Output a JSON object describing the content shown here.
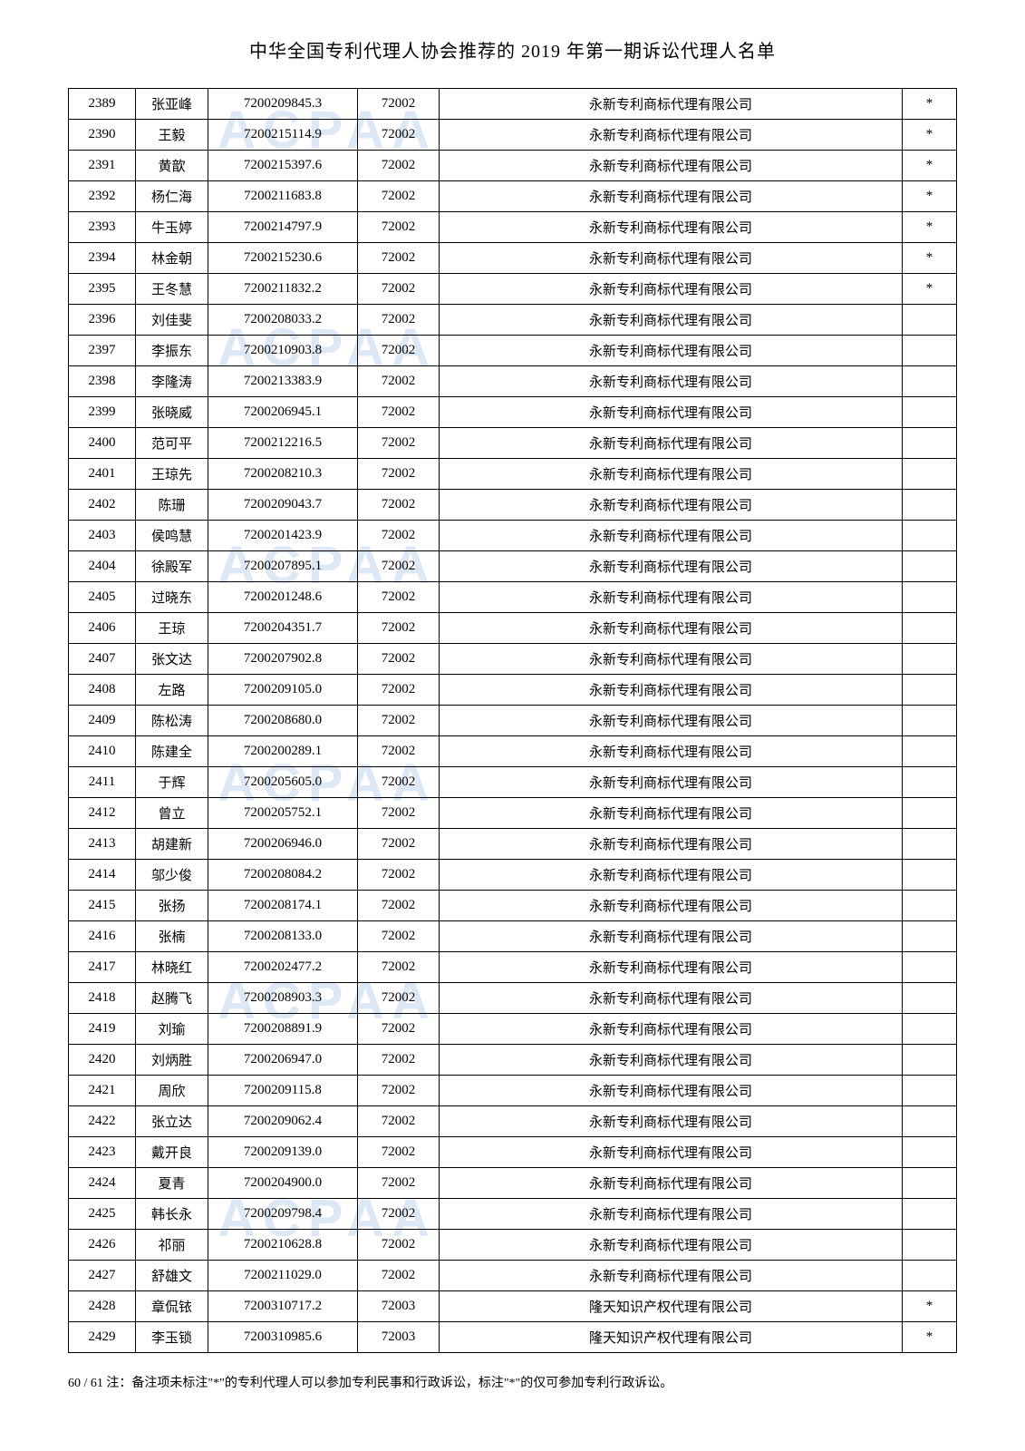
{
  "title": "中华全国专利代理人协会推荐的 2019 年第一期诉讼代理人名单",
  "footer": "60 / 61 注：备注项未标注\"*\"的专利代理人可以参加专利民事和行政诉讼，标注\"*\"的仅可参加专利行政诉讼。",
  "watermark_text": "ACPAA",
  "watermark_color": "#dce8f5",
  "colors": {
    "text": "#000000",
    "border": "#000000",
    "background": "#ffffff"
  },
  "columns": {
    "id_width": 74,
    "name_width": 80,
    "number_width": 165,
    "code_width": 90,
    "mark_width": 60
  },
  "rows": [
    {
      "id": "2389",
      "name": "张亚峰",
      "number": "7200209845.3",
      "code": "72002",
      "company": "永新专利商标代理有限公司",
      "mark": "*"
    },
    {
      "id": "2390",
      "name": "王毅",
      "number": "7200215114.9",
      "code": "72002",
      "company": "永新专利商标代理有限公司",
      "mark": "*"
    },
    {
      "id": "2391",
      "name": "黄歆",
      "number": "7200215397.6",
      "code": "72002",
      "company": "永新专利商标代理有限公司",
      "mark": "*"
    },
    {
      "id": "2392",
      "name": "杨仁海",
      "number": "7200211683.8",
      "code": "72002",
      "company": "永新专利商标代理有限公司",
      "mark": "*"
    },
    {
      "id": "2393",
      "name": "牛玉婷",
      "number": "7200214797.9",
      "code": "72002",
      "company": "永新专利商标代理有限公司",
      "mark": "*"
    },
    {
      "id": "2394",
      "name": "林金朝",
      "number": "7200215230.6",
      "code": "72002",
      "company": "永新专利商标代理有限公司",
      "mark": "*"
    },
    {
      "id": "2395",
      "name": "王冬慧",
      "number": "7200211832.2",
      "code": "72002",
      "company": "永新专利商标代理有限公司",
      "mark": "*"
    },
    {
      "id": "2396",
      "name": "刘佳斐",
      "number": "7200208033.2",
      "code": "72002",
      "company": "永新专利商标代理有限公司",
      "mark": ""
    },
    {
      "id": "2397",
      "name": "李振东",
      "number": "7200210903.8",
      "code": "72002",
      "company": "永新专利商标代理有限公司",
      "mark": ""
    },
    {
      "id": "2398",
      "name": "李隆涛",
      "number": "7200213383.9",
      "code": "72002",
      "company": "永新专利商标代理有限公司",
      "mark": ""
    },
    {
      "id": "2399",
      "name": "张晓威",
      "number": "7200206945.1",
      "code": "72002",
      "company": "永新专利商标代理有限公司",
      "mark": ""
    },
    {
      "id": "2400",
      "name": "范可平",
      "number": "7200212216.5",
      "code": "72002",
      "company": "永新专利商标代理有限公司",
      "mark": ""
    },
    {
      "id": "2401",
      "name": "王琼先",
      "number": "7200208210.3",
      "code": "72002",
      "company": "永新专利商标代理有限公司",
      "mark": ""
    },
    {
      "id": "2402",
      "name": "陈珊",
      "number": "7200209043.7",
      "code": "72002",
      "company": "永新专利商标代理有限公司",
      "mark": ""
    },
    {
      "id": "2403",
      "name": "侯鸣慧",
      "number": "7200201423.9",
      "code": "72002",
      "company": "永新专利商标代理有限公司",
      "mark": ""
    },
    {
      "id": "2404",
      "name": "徐殿军",
      "number": "7200207895.1",
      "code": "72002",
      "company": "永新专利商标代理有限公司",
      "mark": ""
    },
    {
      "id": "2405",
      "name": "过晓东",
      "number": "7200201248.6",
      "code": "72002",
      "company": "永新专利商标代理有限公司",
      "mark": ""
    },
    {
      "id": "2406",
      "name": "王琼",
      "number": "7200204351.7",
      "code": "72002",
      "company": "永新专利商标代理有限公司",
      "mark": ""
    },
    {
      "id": "2407",
      "name": "张文达",
      "number": "7200207902.8",
      "code": "72002",
      "company": "永新专利商标代理有限公司",
      "mark": ""
    },
    {
      "id": "2408",
      "name": "左路",
      "number": "7200209105.0",
      "code": "72002",
      "company": "永新专利商标代理有限公司",
      "mark": ""
    },
    {
      "id": "2409",
      "name": "陈松涛",
      "number": "7200208680.0",
      "code": "72002",
      "company": "永新专利商标代理有限公司",
      "mark": ""
    },
    {
      "id": "2410",
      "name": "陈建全",
      "number": "7200200289.1",
      "code": "72002",
      "company": "永新专利商标代理有限公司",
      "mark": ""
    },
    {
      "id": "2411",
      "name": "于辉",
      "number": "7200205605.0",
      "code": "72002",
      "company": "永新专利商标代理有限公司",
      "mark": ""
    },
    {
      "id": "2412",
      "name": "曾立",
      "number": "7200205752.1",
      "code": "72002",
      "company": "永新专利商标代理有限公司",
      "mark": ""
    },
    {
      "id": "2413",
      "name": "胡建新",
      "number": "7200206946.0",
      "code": "72002",
      "company": "永新专利商标代理有限公司",
      "mark": ""
    },
    {
      "id": "2414",
      "name": "邬少俊",
      "number": "7200208084.2",
      "code": "72002",
      "company": "永新专利商标代理有限公司",
      "mark": ""
    },
    {
      "id": "2415",
      "name": "张扬",
      "number": "7200208174.1",
      "code": "72002",
      "company": "永新专利商标代理有限公司",
      "mark": ""
    },
    {
      "id": "2416",
      "name": "张楠",
      "number": "7200208133.0",
      "code": "72002",
      "company": "永新专利商标代理有限公司",
      "mark": ""
    },
    {
      "id": "2417",
      "name": "林晓红",
      "number": "7200202477.2",
      "code": "72002",
      "company": "永新专利商标代理有限公司",
      "mark": ""
    },
    {
      "id": "2418",
      "name": "赵腾飞",
      "number": "7200208903.3",
      "code": "72002",
      "company": "永新专利商标代理有限公司",
      "mark": ""
    },
    {
      "id": "2419",
      "name": "刘瑜",
      "number": "7200208891.9",
      "code": "72002",
      "company": "永新专利商标代理有限公司",
      "mark": ""
    },
    {
      "id": "2420",
      "name": "刘炳胜",
      "number": "7200206947.0",
      "code": "72002",
      "company": "永新专利商标代理有限公司",
      "mark": ""
    },
    {
      "id": "2421",
      "name": "周欣",
      "number": "7200209115.8",
      "code": "72002",
      "company": "永新专利商标代理有限公司",
      "mark": ""
    },
    {
      "id": "2422",
      "name": "张立达",
      "number": "7200209062.4",
      "code": "72002",
      "company": "永新专利商标代理有限公司",
      "mark": ""
    },
    {
      "id": "2423",
      "name": "戴开良",
      "number": "7200209139.0",
      "code": "72002",
      "company": "永新专利商标代理有限公司",
      "mark": ""
    },
    {
      "id": "2424",
      "name": "夏青",
      "number": "7200204900.0",
      "code": "72002",
      "company": "永新专利商标代理有限公司",
      "mark": ""
    },
    {
      "id": "2425",
      "name": "韩长永",
      "number": "7200209798.4",
      "code": "72002",
      "company": "永新专利商标代理有限公司",
      "mark": ""
    },
    {
      "id": "2426",
      "name": "祁丽",
      "number": "7200210628.8",
      "code": "72002",
      "company": "永新专利商标代理有限公司",
      "mark": ""
    },
    {
      "id": "2427",
      "name": "舒雄文",
      "number": "7200211029.0",
      "code": "72002",
      "company": "永新专利商标代理有限公司",
      "mark": ""
    },
    {
      "id": "2428",
      "name": "章侃铱",
      "number": "7200310717.2",
      "code": "72003",
      "company": "隆天知识产权代理有限公司",
      "mark": "*"
    },
    {
      "id": "2429",
      "name": "李玉锁",
      "number": "7200310985.6",
      "code": "72003",
      "company": "隆天知识产权代理有限公司",
      "mark": "*"
    }
  ]
}
